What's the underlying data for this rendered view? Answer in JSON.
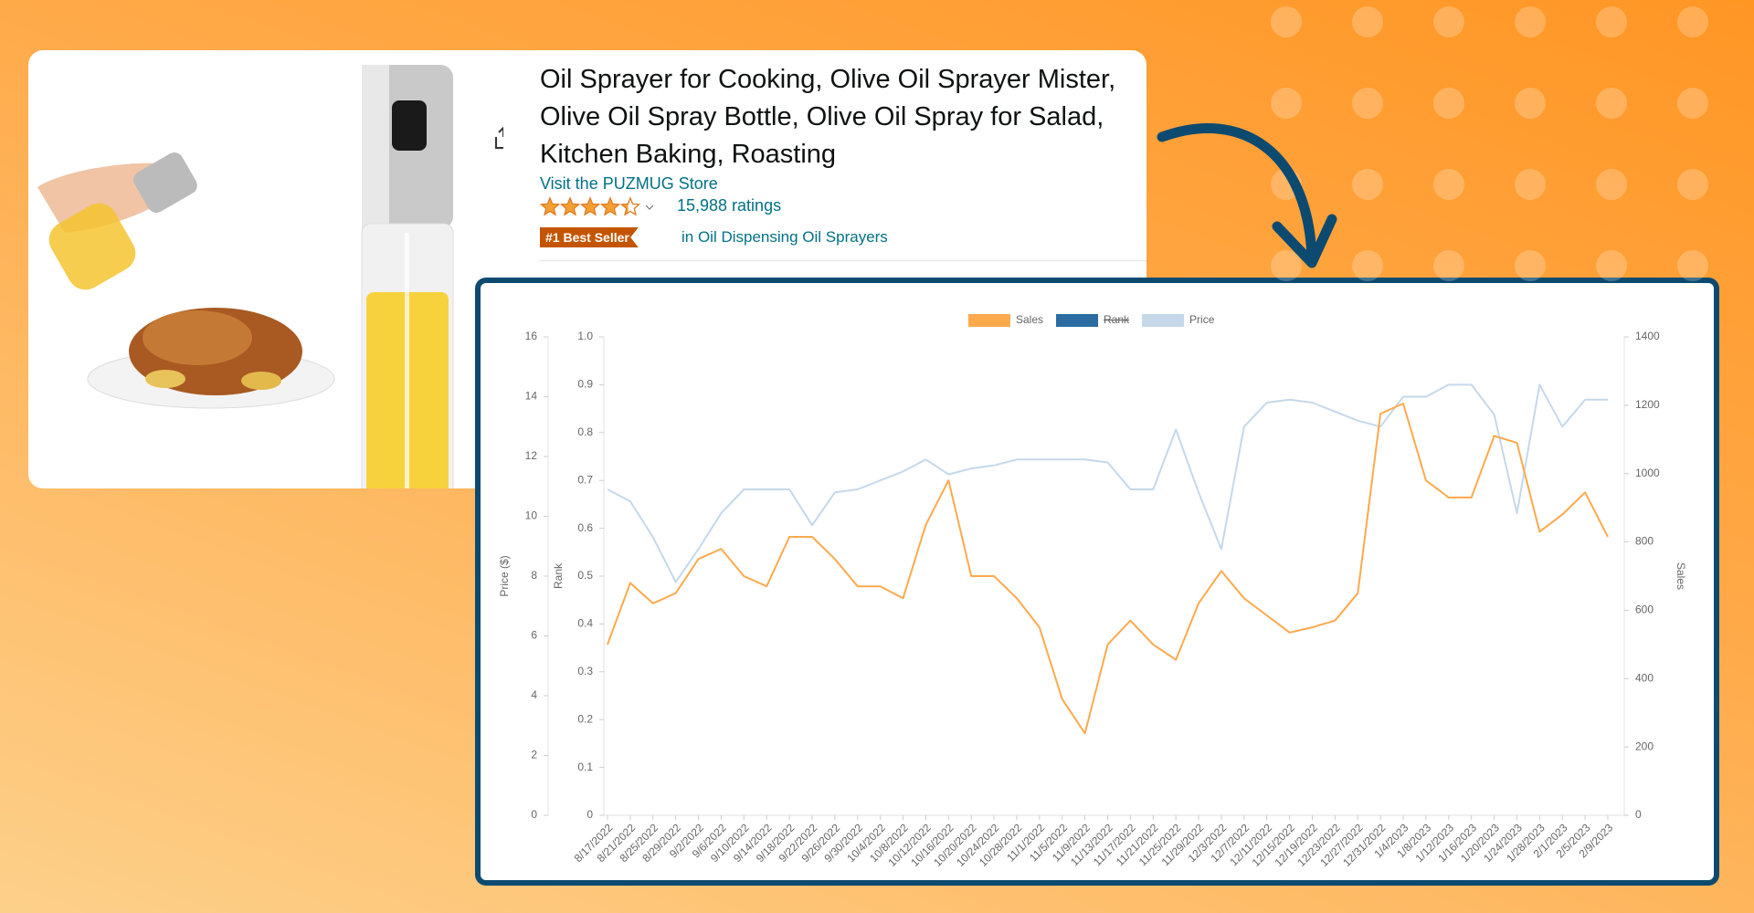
{
  "product": {
    "title": "Oil Sprayer for Cooking, Olive Oil Sprayer Mister, Olive Oil Spray Bottle, Olive Oil Spray for Salad, Kitchen Baking, Roasting",
    "store": "Visit the PUZMUG Store",
    "rating": 4.3,
    "ratings": "15,988 ratings",
    "badge": "#1 Best Seller",
    "category": "in Oil Dispensing Oil Sprayers"
  },
  "chart_data": {
    "type": "line",
    "categories": [
      "8/17/2022",
      "8/21/2022",
      "8/25/2022",
      "8/29/2022",
      "9/2/2022",
      "9/6/2022",
      "9/10/2022",
      "9/14/2022",
      "9/18/2022",
      "9/22/2022",
      "9/26/2022",
      "9/30/2022",
      "10/4/2022",
      "10/8/2022",
      "10/12/2022",
      "10/16/2022",
      "10/20/2022",
      "10/24/2022",
      "10/28/2022",
      "11/1/2022",
      "11/5/2022",
      "11/9/2022",
      "11/13/2022",
      "11/17/2022",
      "11/21/2022",
      "11/25/2022",
      "11/29/2022",
      "12/3/2022",
      "12/7/2022",
      "12/11/2022",
      "12/15/2022",
      "12/19/2022",
      "12/23/2022",
      "12/27/2022",
      "12/31/2022",
      "1/4/2023",
      "1/8/2023",
      "1/12/2023",
      "1/16/2023",
      "1/20/2023",
      "1/24/2023",
      "1/28/2023",
      "2/1/2023",
      "2/5/2023",
      "2/9/2023"
    ],
    "series": [
      {
        "name": "Sales",
        "color": "#ffa94d",
        "axis": "y2",
        "values": [
          500,
          680,
          620,
          650,
          750,
          780,
          700,
          670,
          815,
          815,
          750,
          670,
          670,
          635,
          850,
          980,
          700,
          700,
          635,
          550,
          340,
          240,
          500,
          570,
          500,
          455,
          620,
          715,
          635,
          585,
          535,
          550,
          570,
          650,
          1175,
          1205,
          980,
          930,
          930,
          1110,
          1090,
          830,
          880,
          945,
          815
        ]
      },
      {
        "name": "Rank",
        "color": "#2b6ca3",
        "hidden": true
      },
      {
        "name": "Price",
        "color": "#c5d8ea",
        "values": [
          10.9,
          10.5,
          9.3,
          7.8,
          8.9,
          10.1,
          10.9,
          10.9,
          10.9,
          9.7,
          10.8,
          10.9,
          11.2,
          11.5,
          11.9,
          11.4,
          11.6,
          11.7,
          11.9,
          11.9,
          11.9,
          11.9,
          11.8,
          10.9,
          10.9,
          12.9,
          10.8,
          8.9,
          13.0,
          13.8,
          13.9,
          13.8,
          13.5,
          13.2,
          13.0,
          14.0,
          14.0,
          14.4,
          14.4,
          13.4,
          10.1,
          14.4,
          13.0,
          13.9,
          13.9
        ]
      }
    ],
    "ylabel": "Price ($)",
    "ylim": [
      0,
      16
    ],
    "yticks": [
      0,
      2,
      4,
      6,
      8,
      10,
      12,
      14,
      16
    ],
    "rank_label": "Rank",
    "rank_lim": [
      0,
      1
    ],
    "rank_ticks": [
      0,
      0.1,
      0.2,
      0.3,
      0.4,
      0.5,
      0.6,
      0.7,
      0.8,
      0.9,
      {
        "value": 1,
        "label": "1.0"
      }
    ],
    "y2label": "Sales",
    "y2lim": [
      0,
      1400
    ],
    "y2ticks": [
      0,
      200,
      400,
      600,
      800,
      1000,
      1200,
      1400
    ],
    "legend": "top"
  }
}
